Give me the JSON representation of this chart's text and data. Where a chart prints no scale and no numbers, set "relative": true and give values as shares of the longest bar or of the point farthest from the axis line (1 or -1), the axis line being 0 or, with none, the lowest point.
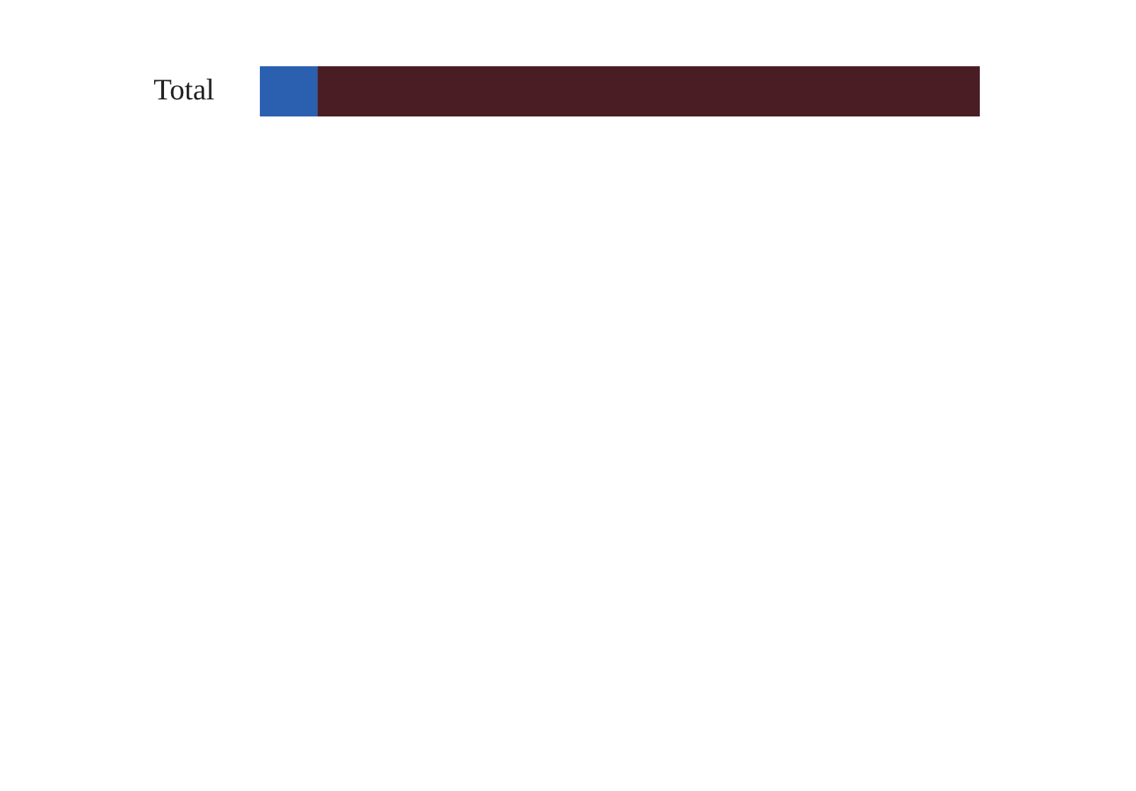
{
  "chart_data": {
    "type": "bar",
    "orientation": "horizontal",
    "stacked": true,
    "relative": true,
    "categories": [
      "Total"
    ],
    "series": [
      {
        "color": "#2b5fb0",
        "values": [
          0.08
        ]
      },
      {
        "color": "#4a1c24",
        "values": [
          0.92
        ]
      }
    ]
  }
}
